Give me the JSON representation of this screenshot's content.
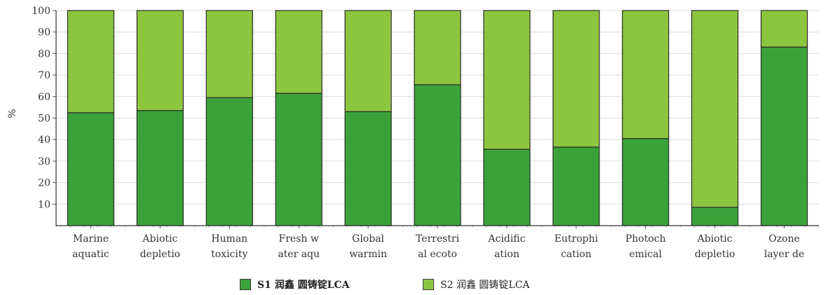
{
  "chart_data": {
    "type": "bar",
    "stacked": true,
    "ylabel": "%",
    "ylim": [
      0,
      100
    ],
    "yticks": [
      10,
      20,
      30,
      40,
      50,
      60,
      70,
      80,
      90,
      100
    ],
    "grid": true,
    "legend_position": "bottom",
    "categories": [
      [
        "Marine",
        "aquatic"
      ],
      [
        "Abiotic",
        "depletio"
      ],
      [
        "Human",
        "toxicity"
      ],
      [
        "Fresh w",
        "ater aqu"
      ],
      [
        "Global",
        "warmin"
      ],
      [
        "Terrestri",
        "al ecoto"
      ],
      [
        "Acidific",
        "ation"
      ],
      [
        "Eutrophi",
        "cation"
      ],
      [
        "Photoch",
        "emical"
      ],
      [
        "Abiotic",
        "depletio"
      ],
      [
        "Ozone",
        "layer de"
      ]
    ],
    "series": [
      {
        "name": "S1 润鑫 圆铸锭LCA",
        "color": "#3ba23a",
        "values": [
          52.5,
          53.5,
          59.5,
          61.5,
          53,
          65.5,
          35.5,
          36.5,
          40.5,
          8.5,
          83
        ]
      },
      {
        "name": "S2 润鑫 圆铸锭LCA",
        "color": "#8cc63f",
        "values": [
          47.5,
          46.5,
          40.5,
          38.5,
          47,
          34.5,
          64.5,
          63.5,
          59.5,
          91.5,
          17
        ]
      }
    ]
  }
}
